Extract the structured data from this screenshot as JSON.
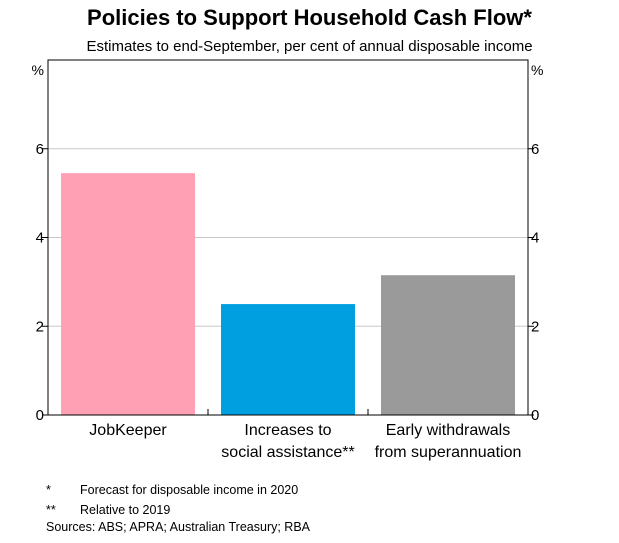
{
  "chart_data": {
    "type": "bar",
    "title": "Policies to Support Household Cash Flow*",
    "subtitle": "Estimates to end-September, per cent of annual disposable income",
    "y_unit_left": "%",
    "y_unit_right": "%",
    "ylim": [
      0,
      8
    ],
    "yticks": [
      0,
      2,
      4,
      6
    ],
    "grid": true,
    "categories": [
      [
        "JobKeeper"
      ],
      [
        "Increases to",
        "social assistance**"
      ],
      [
        "Early withdrawals",
        "from superannuation"
      ]
    ],
    "values": [
      5.45,
      2.5,
      3.15
    ],
    "colors": [
      "#ffa0b4",
      "#00a0e0",
      "#9a9a9a"
    ]
  },
  "footnotes": [
    {
      "mark": "*",
      "text": "Forecast for disposable income in 2020"
    },
    {
      "mark": "**",
      "text": "Relative to 2019"
    }
  ],
  "sources": "Sources:  ABS; APRA; Australian Treasury; RBA"
}
